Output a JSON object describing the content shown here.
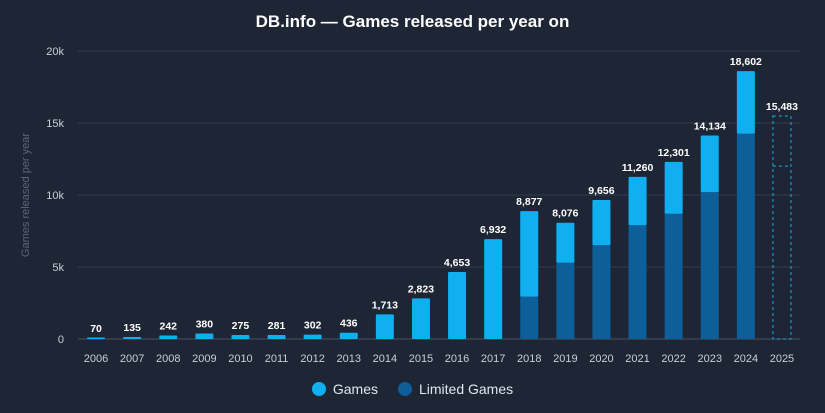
{
  "chart_data": {
    "type": "bar",
    "title": "DB.info — Games released per year on",
    "ylabel": "Games released per year",
    "xlabel": "",
    "ylim": [
      0,
      20000
    ],
    "yticks": [
      0,
      5000,
      10000,
      15000,
      20000
    ],
    "ytick_labels": [
      "0",
      "5k",
      "10k",
      "15k",
      "20k"
    ],
    "grid": true,
    "legend_position": "bottom",
    "stacked": true,
    "categories": [
      "2006",
      "2007",
      "2008",
      "2009",
      "2010",
      "2011",
      "2012",
      "2013",
      "2014",
      "2015",
      "2016",
      "2017",
      "2018",
      "2019",
      "2020",
      "2021",
      "2022",
      "2023",
      "2024",
      "2025"
    ],
    "totals": [
      70,
      135,
      242,
      380,
      275,
      281,
      302,
      436,
      1713,
      2823,
      4653,
      6932,
      8877,
      8076,
      9656,
      11260,
      12301,
      14134,
      18602,
      15483
    ],
    "total_labels": [
      "70",
      "135",
      "242",
      "380",
      "275",
      "281",
      "302",
      "436",
      "1,713",
      "2,823",
      "4,653",
      "6,932",
      "8,877",
      "8,076",
      "9,656",
      "11,260",
      "12,301",
      "14,134",
      "18,602",
      "15,483"
    ],
    "series": [
      {
        "name": "Games",
        "color": "#10b0f0",
        "values": [
          70,
          135,
          242,
          380,
          275,
          281,
          302,
          436,
          1713,
          2823,
          4653,
          6932,
          5930,
          2780,
          3136,
          3360,
          3601,
          3934,
          4352,
          3480
        ]
      },
      {
        "name": "Limited Games",
        "color": "#0d5f9a",
        "values": [
          0,
          0,
          0,
          0,
          0,
          0,
          0,
          0,
          0,
          0,
          0,
          0,
          2947,
          5296,
          6520,
          7900,
          8700,
          10200,
          14250,
          12003
        ]
      }
    ],
    "projected_category": "2025"
  }
}
